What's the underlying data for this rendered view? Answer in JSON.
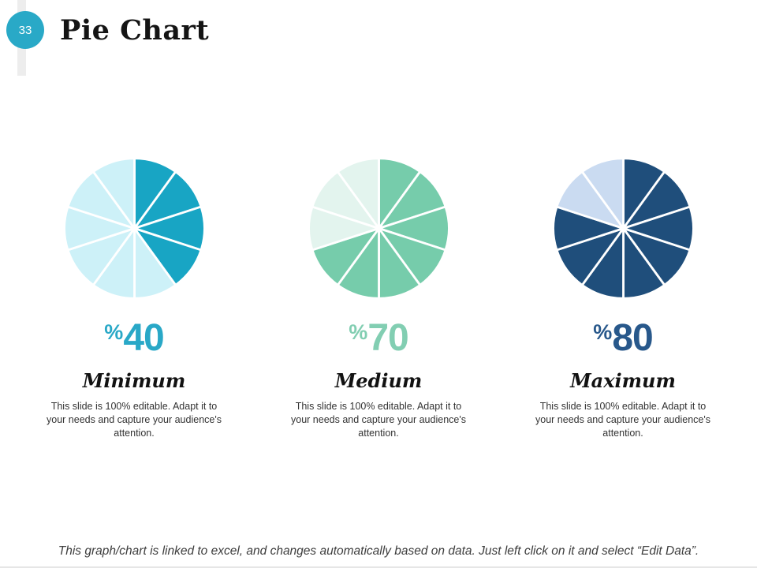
{
  "slide": {
    "number": "33",
    "title": "Pie Chart",
    "footer": "This graph/chart is linked to excel, and changes automatically based on data. Just left click on it and select “Edit Data”.",
    "accent_color": "#29a9c7"
  },
  "chart_data": [
    {
      "type": "pie",
      "name": "Minimum",
      "percent_sign": "%",
      "percent_value": "40",
      "description": "This slide is 100% editable. Adapt it to your needs and capture your audience's attention.",
      "slice_count": 10,
      "filled_slices": 4,
      "start": "top",
      "direction": "clockwise",
      "values": [
        {
          "label": "highlighted",
          "value": 40
        },
        {
          "label": "remainder",
          "value": 60
        }
      ],
      "colors": {
        "filled": "#18a5c4",
        "remainder": "#cdf1f8",
        "label": "#29a8c7"
      }
    },
    {
      "type": "pie",
      "name": "Medium",
      "percent_sign": "%",
      "percent_value": "70",
      "description": "This slide is 100% editable. Adapt it to your needs and capture your audience's attention.",
      "slice_count": 10,
      "filled_slices": 7,
      "start": "top",
      "direction": "clockwise",
      "values": [
        {
          "label": "highlighted",
          "value": 70
        },
        {
          "label": "remainder",
          "value": 30
        }
      ],
      "colors": {
        "filled": "#76ccab",
        "remainder": "#e3f4ee",
        "label": "#82ceb2"
      }
    },
    {
      "type": "pie",
      "name": "Maximum",
      "percent_sign": "%",
      "percent_value": "80",
      "description": "This slide is 100% editable. Adapt it to your needs and capture your audience's attention.",
      "slice_count": 10,
      "filled_slices": 8,
      "start": "top",
      "direction": "clockwise",
      "values": [
        {
          "label": "highlighted",
          "value": 80
        },
        {
          "label": "remainder",
          "value": 20
        }
      ],
      "colors": {
        "filled": "#1f4e7b",
        "remainder": "#cadbf1",
        "label": "#28588b"
      }
    }
  ]
}
